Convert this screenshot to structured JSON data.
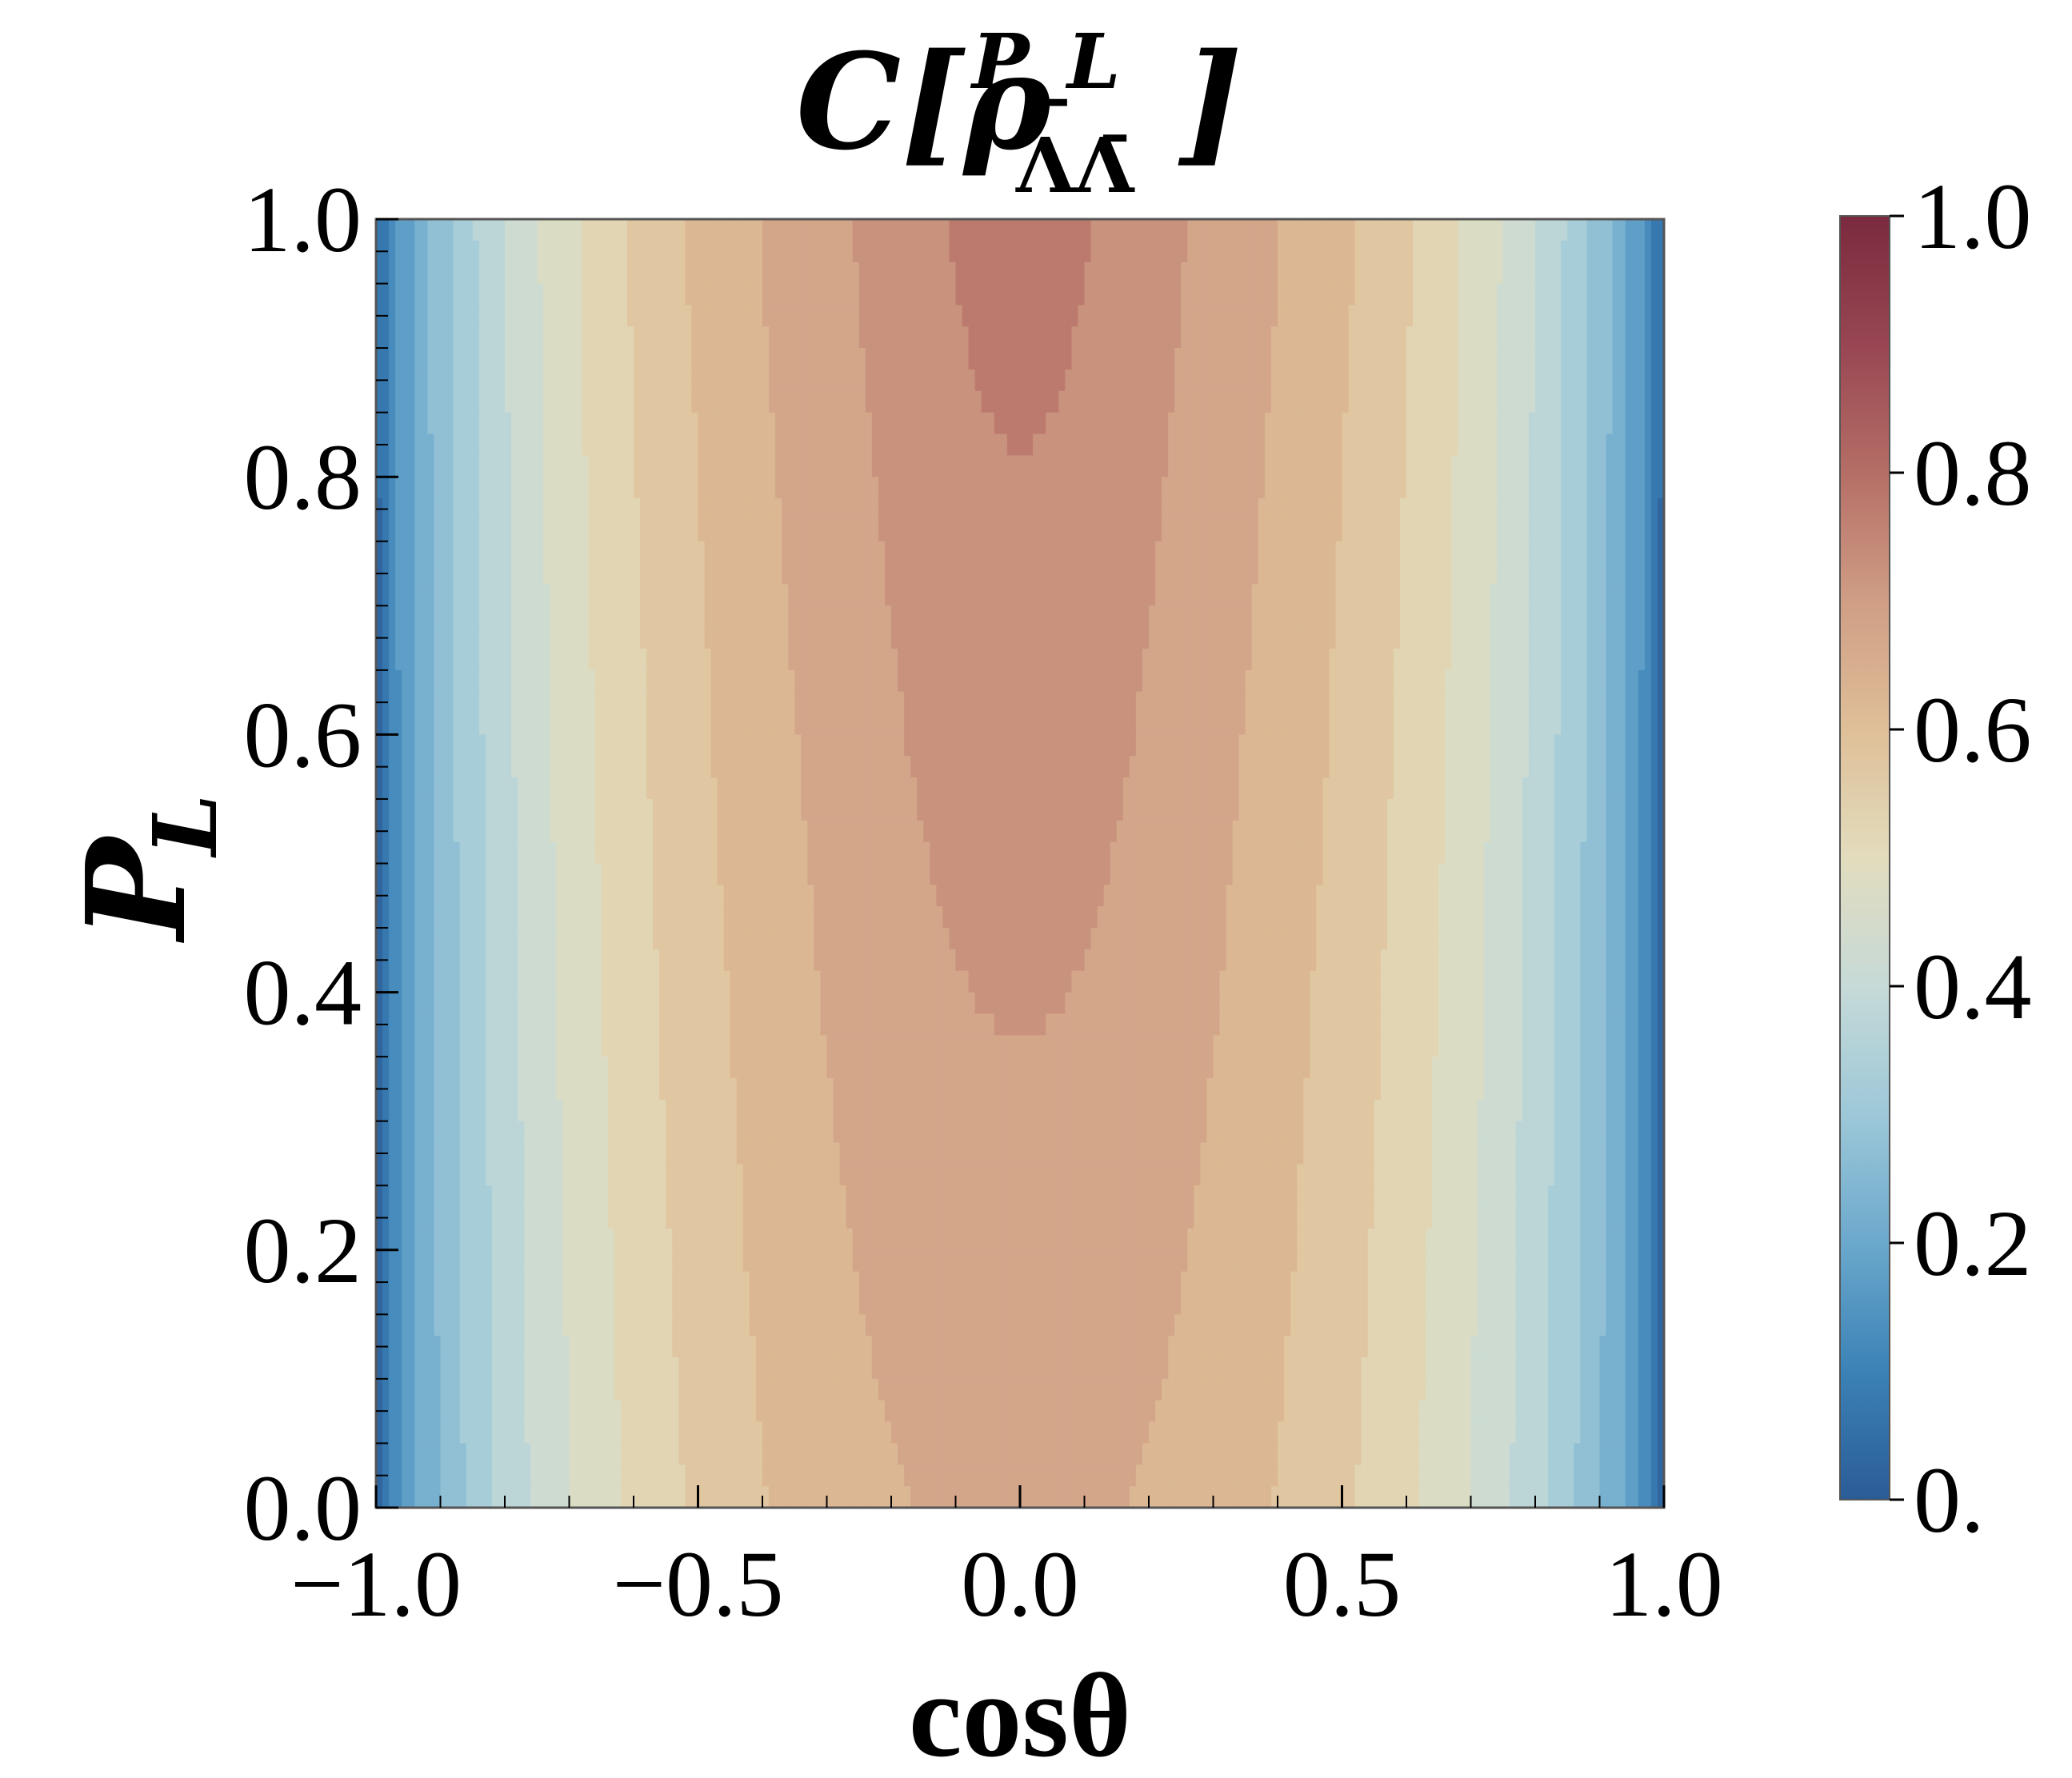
{
  "chart_data": {
    "type": "heatmap",
    "title": {
      "base": "C[ρ",
      "superscript": "P_L",
      "subscript": "ΛΛ̄",
      "close": "]"
    },
    "xlabel": "cosθ",
    "ylabel": {
      "base": "P",
      "subscript": "L"
    },
    "xlim": [
      -1.0,
      1.0
    ],
    "ylim": [
      0.0,
      1.0
    ],
    "x_ticks": [
      -1.0,
      -0.5,
      0.0,
      0.5,
      1.0
    ],
    "x_tick_labels": [
      "−1.0",
      "−0.5",
      "0.0",
      "0.5",
      "1.0"
    ],
    "y_ticks": [
      0.0,
      0.2,
      0.4,
      0.6,
      0.8,
      1.0
    ],
    "y_tick_labels": [
      "0.0",
      "0.2",
      "0.4",
      "0.6",
      "0.8",
      "1.0"
    ],
    "colorbar": {
      "range": [
        0.0,
        1.0
      ],
      "ticks": [
        0.0,
        0.2,
        0.4,
        0.6,
        0.8,
        1.0
      ],
      "tick_labels": [
        "0.",
        "0.2",
        "0.4",
        "0.6",
        "0.8",
        "1.0"
      ],
      "colormap": "RdYlBu_r"
    },
    "colormap_stops": [
      {
        "v": 0.0,
        "color": "#2b5c97"
      },
      {
        "v": 0.1,
        "color": "#3b82b6"
      },
      {
        "v": 0.2,
        "color": "#6ba8cc"
      },
      {
        "v": 0.3,
        "color": "#9dc8d8"
      },
      {
        "v": 0.4,
        "color": "#c6dad8"
      },
      {
        "v": 0.5,
        "color": "#e2dcbd"
      },
      {
        "v": 0.6,
        "color": "#dfbf98"
      },
      {
        "v": 0.7,
        "color": "#cf9e85"
      },
      {
        "v": 0.8,
        "color": "#b56e66"
      },
      {
        "v": 0.9,
        "color": "#984653"
      },
      {
        "v": 1.0,
        "color": "#7a2a3d"
      }
    ],
    "contour_levels": 20,
    "field_model": {
      "description": "C ≈ max-level peak at cosθ=0 with weak P_L dependence",
      "center_value_at_PL0": 0.66,
      "center_value_at_PL1": 0.72,
      "edge_value": 0.0
    },
    "grid": false
  }
}
